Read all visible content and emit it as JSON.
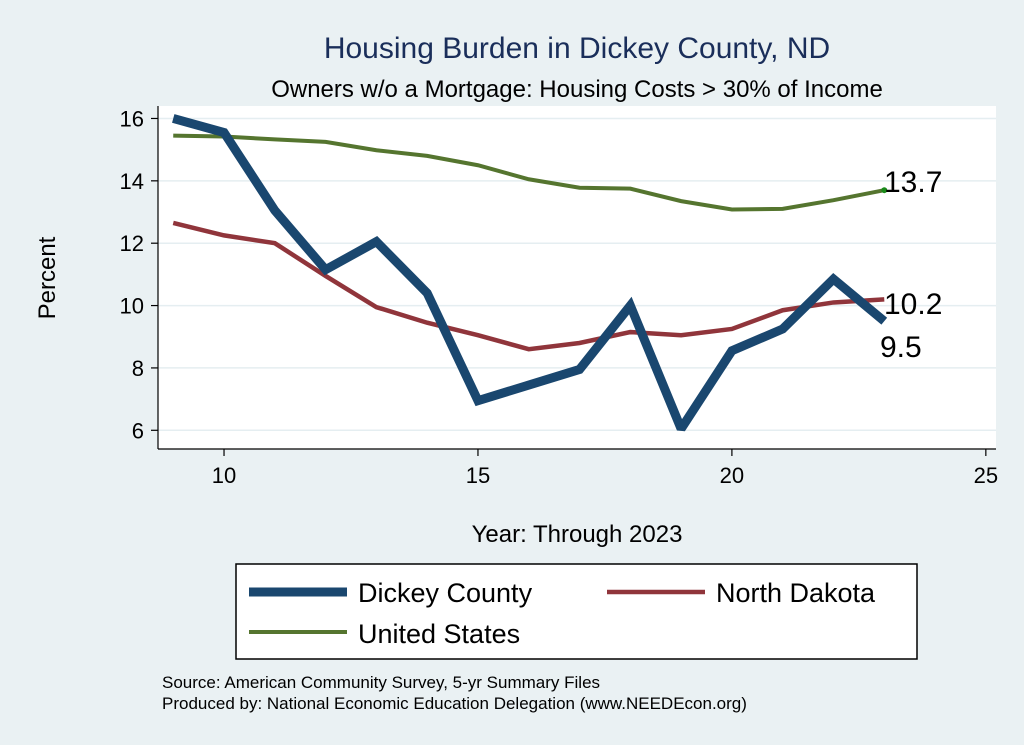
{
  "chart_data": {
    "type": "line",
    "title": "Housing Burden in Dickey County, ND",
    "subtitle": "Owners w/o a Mortgage: Housing Costs > 30% of Income",
    "xlabel": "Year: Through 2023",
    "ylabel": "Percent",
    "xlim": [
      8.7,
      25.2
    ],
    "ylim": [
      5.4,
      16.4
    ],
    "xticks": [
      10,
      15,
      20,
      25
    ],
    "yticks": [
      6,
      8,
      10,
      12,
      14,
      16
    ],
    "grid": true,
    "legend_position": "bottom",
    "x": [
      9,
      10,
      11,
      12,
      13,
      14,
      15,
      16,
      17,
      18,
      19,
      20,
      21,
      22,
      23
    ],
    "series": [
      {
        "name": "Dickey County",
        "color": "#1a476f",
        "values": [
          16.0,
          15.55,
          13.05,
          11.15,
          12.05,
          10.4,
          6.95,
          7.45,
          7.95,
          10.0,
          6.05,
          8.55,
          9.25,
          10.85,
          9.5
        ],
        "end_label": "9.5"
      },
      {
        "name": "North Dakota",
        "color": "#90353b",
        "values": [
          12.65,
          12.25,
          12.0,
          10.95,
          9.95,
          9.45,
          9.05,
          8.6,
          8.8,
          9.15,
          9.05,
          9.25,
          9.85,
          10.1,
          10.2
        ],
        "end_label": "10.2"
      },
      {
        "name": "United States",
        "color": "#55752f",
        "values": [
          15.45,
          15.42,
          15.33,
          15.25,
          14.98,
          14.8,
          14.5,
          14.05,
          13.78,
          13.75,
          13.35,
          13.08,
          13.1,
          13.38,
          13.7
        ],
        "end_label": "13.7"
      }
    ],
    "notes": [
      "Source: American Community Survey, 5-yr Summary Files",
      "Produced by: National Economic Education Delegation (www.NEEDEcon.org)"
    ]
  }
}
